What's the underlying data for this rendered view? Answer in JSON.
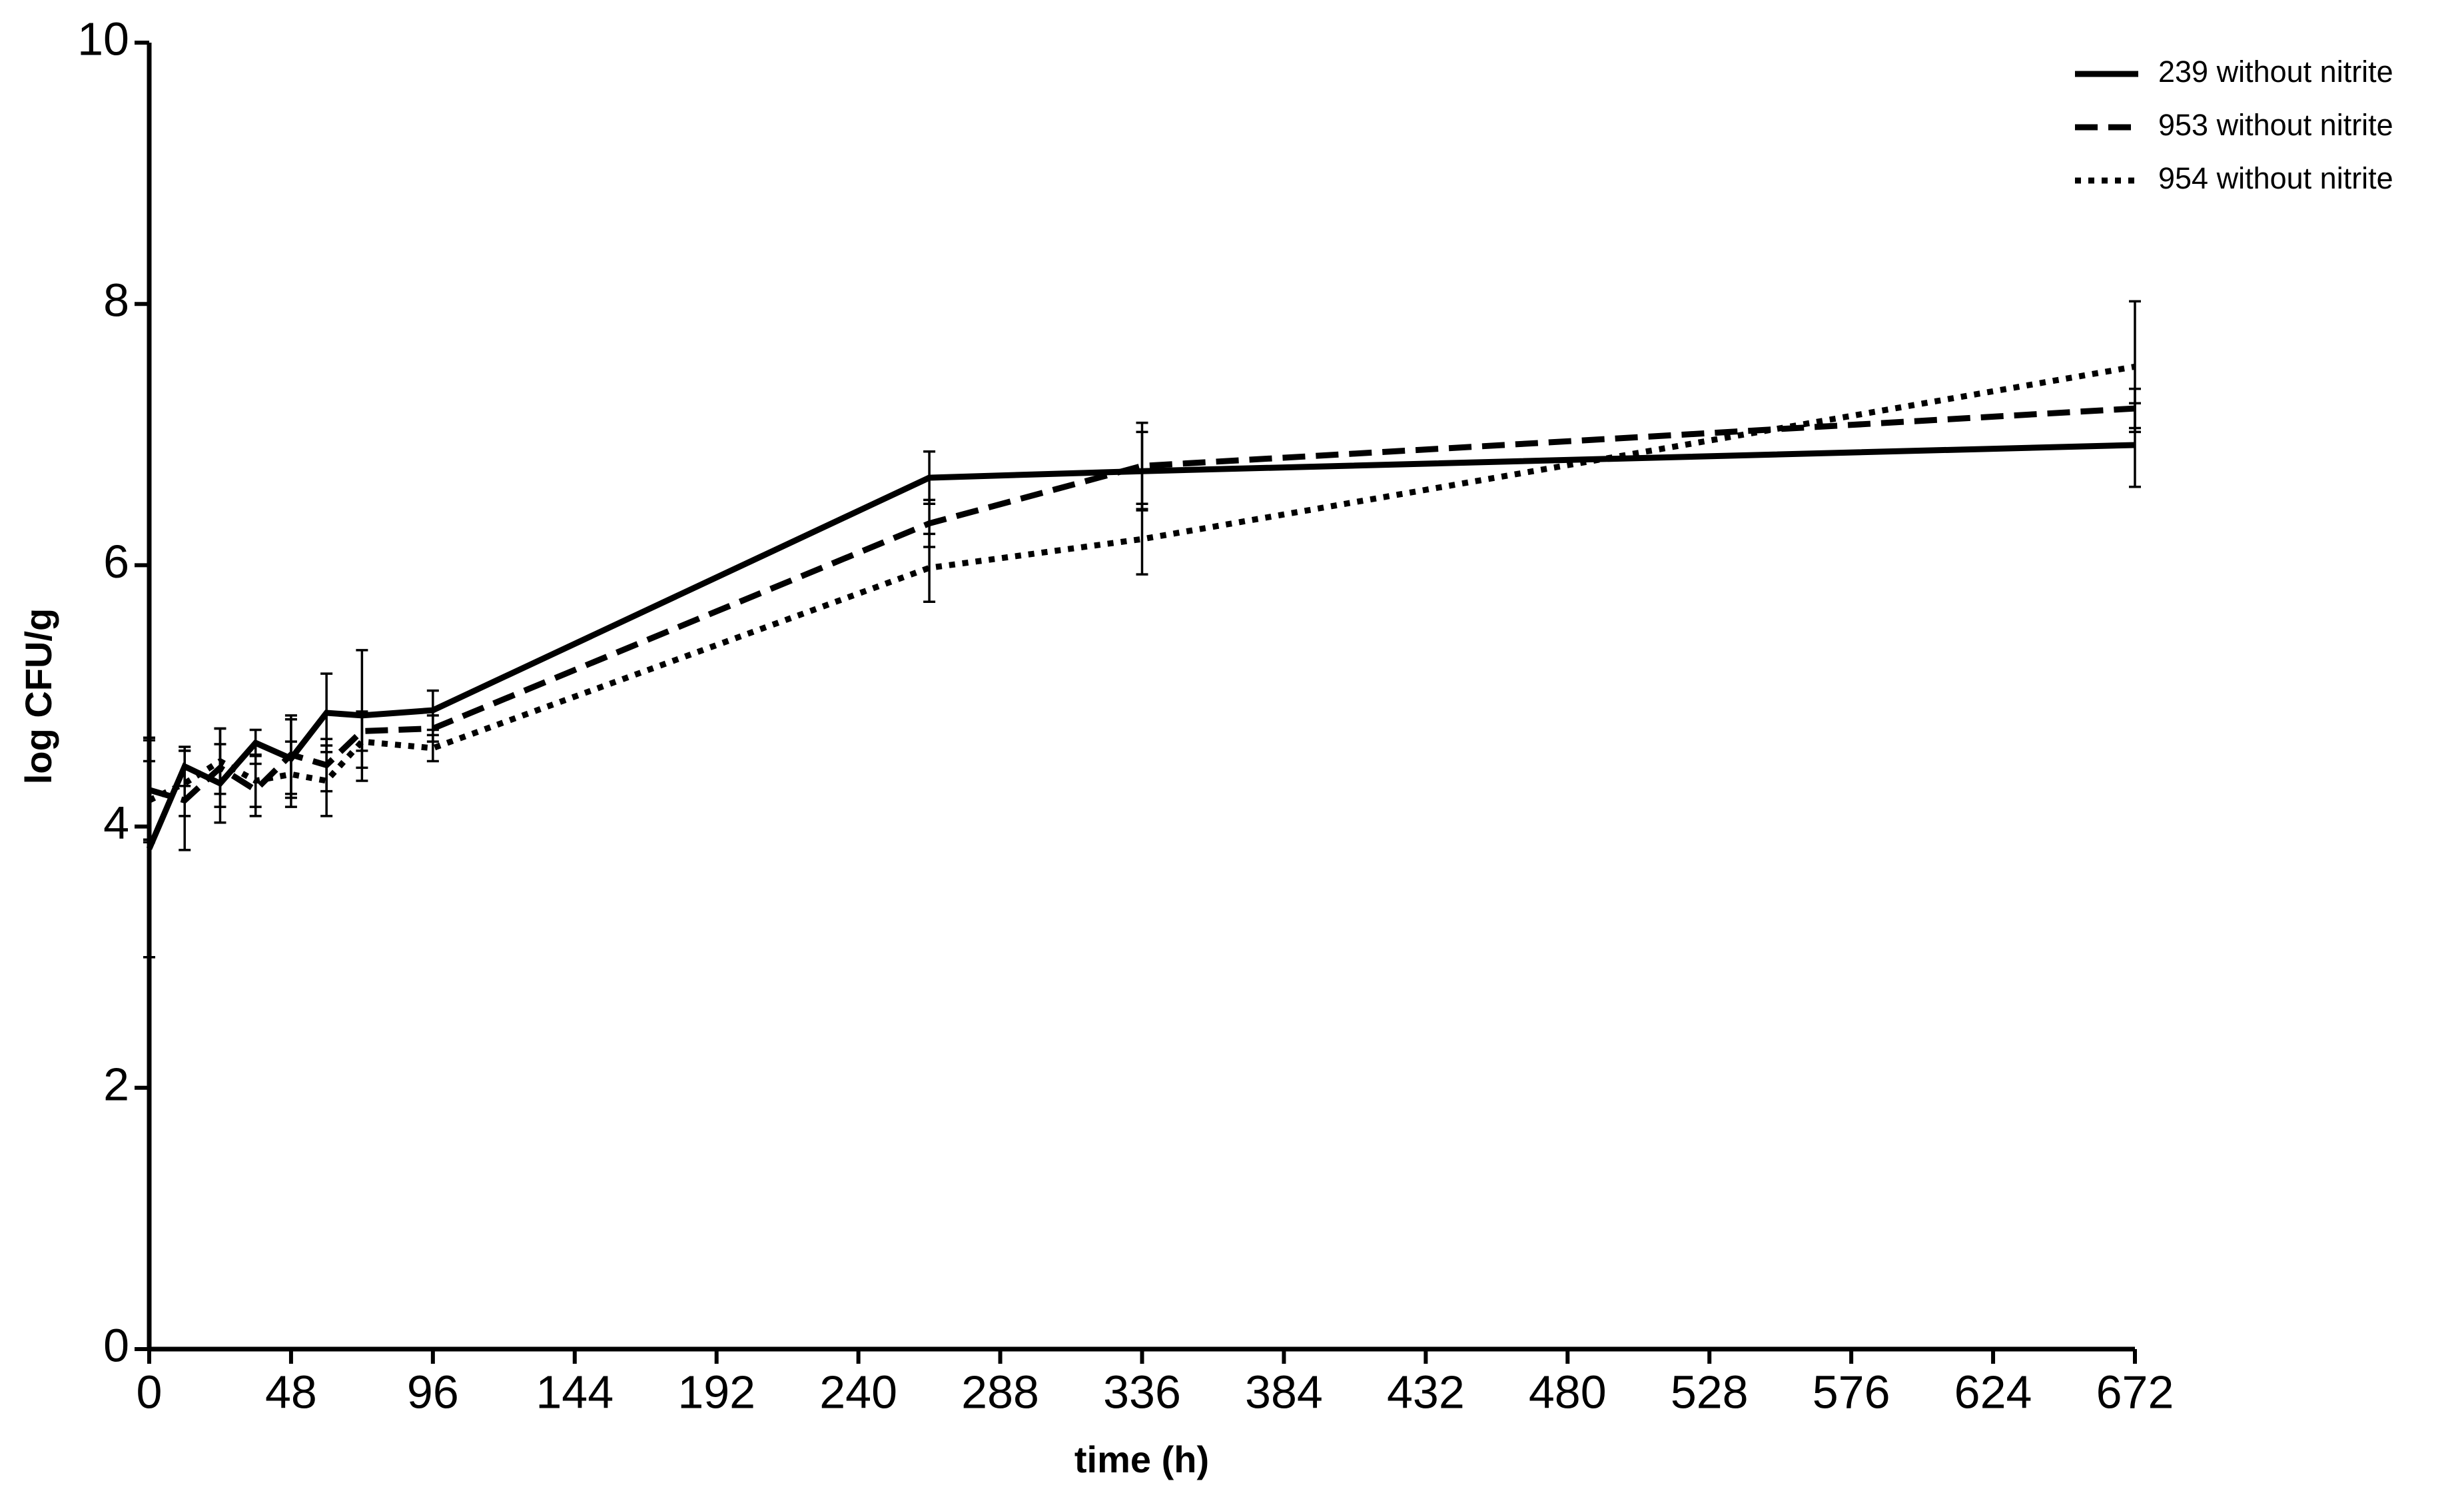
{
  "chart_data": {
    "type": "line",
    "x_label": "time (h)",
    "y_label": "log CFU/g",
    "xlim": [
      0,
      672
    ],
    "xticks": [
      0,
      48,
      96,
      144,
      192,
      240,
      288,
      336,
      384,
      432,
      480,
      528,
      576,
      624,
      672
    ],
    "ylim": [
      0,
      10
    ],
    "yticks": [
      0,
      2,
      4,
      6,
      8,
      10
    ],
    "grid": false,
    "legend": "top-right",
    "x": [
      0,
      12,
      24,
      36,
      48,
      60,
      72,
      96,
      264,
      336,
      672
    ],
    "series": [
      {
        "name": "239 without nitrite",
        "color": "#000000",
        "style": "solid",
        "values": [
          3.83,
          4.46,
          4.33,
          4.64,
          4.52,
          4.87,
          4.85,
          4.89,
          6.67,
          6.72,
          6.92
        ],
        "errors": [
          0.83,
          0.15,
          0.3,
          0.1,
          0.3,
          0.3,
          0.5,
          0.15,
          0.2,
          0.3,
          0.32
        ]
      },
      {
        "name": "953 without nitrite",
        "color": "#000000",
        "style": "dashed",
        "values": [
          4.28,
          4.2,
          4.45,
          4.28,
          4.55,
          4.47,
          4.73,
          4.75,
          6.32,
          6.76,
          7.2
        ],
        "errors": [
          0.4,
          0.38,
          0.3,
          0.2,
          0.3,
          0.2,
          0.15,
          0.1,
          0.18,
          0.33,
          0.15
        ]
      },
      {
        "name": "954 without nitrite",
        "color": "#000000",
        "style": "dotted",
        "values": [
          4.2,
          4.33,
          4.5,
          4.35,
          4.4,
          4.35,
          4.65,
          4.6,
          5.98,
          6.2,
          7.52
        ],
        "errors": [
          0.3,
          0.25,
          0.25,
          0.2,
          0.25,
          0.27,
          0.2,
          0.1,
          0.26,
          0.27,
          0.5
        ]
      }
    ]
  }
}
